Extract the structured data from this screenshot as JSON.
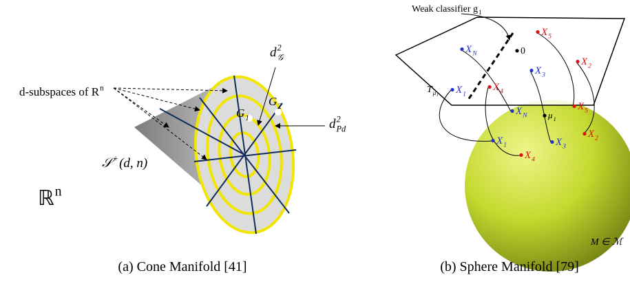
{
  "left_panel": {
    "labels": [
      {
        "text": "d-subspaces of R",
        "sup": "n"
      },
      {
        "text": "d",
        "sup": "2",
        "sub": "𝒢"
      },
      {
        "text": "G",
        "sub": "1"
      },
      {
        "text": "G",
        "sub": "2"
      },
      {
        "text": "d",
        "sup": "2",
        "sub": "Pd"
      },
      {
        "text": "𝒮",
        "sup": "+",
        "after": "(d, n)"
      },
      {
        "text": "ℝ",
        "sup": "n"
      }
    ],
    "caption": "(a) Cone Manifold [41]"
  },
  "right_panel": {
    "labels": [
      {
        "text": "Weak classifier g",
        "sub": "1"
      },
      {
        "text": "X",
        "sub": "N"
      },
      {
        "text": "0"
      },
      {
        "text": "X",
        "sub": "5"
      },
      {
        "text": "X",
        "sub": "2"
      },
      {
        "text": "X",
        "sub": "3"
      },
      {
        "text": "T",
        "sub": "μ₁"
      },
      {
        "text": "X",
        "sub": "1"
      },
      {
        "text": "X",
        "sub": "4"
      },
      {
        "text": "X",
        "sub": "N"
      },
      {
        "text": "μ",
        "sub": "1"
      },
      {
        "text": "X",
        "sub": "5"
      },
      {
        "text": "X",
        "sub": "1"
      },
      {
        "text": "X",
        "sub": "3"
      },
      {
        "text": "X",
        "sub": "2"
      },
      {
        "text": "X",
        "sub": "4"
      },
      {
        "text": "M ∈ ℳ"
      }
    ],
    "caption": "(b) Sphere Manifold [79]"
  }
}
